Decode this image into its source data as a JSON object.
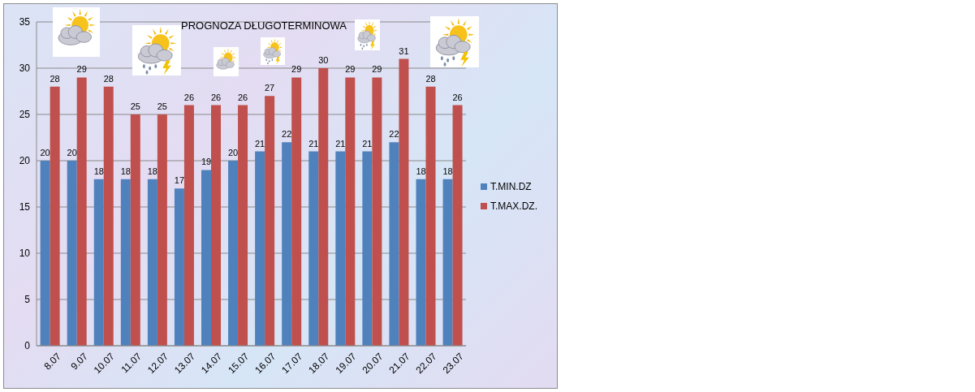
{
  "chart_data": {
    "type": "bar",
    "title": "PROGNOZA DŁUGOTERMINOWA",
    "categories": [
      "8.07",
      "9.07",
      "10.07",
      "11.07",
      "12.07",
      "13.07",
      "14.07",
      "15.07",
      "16.07",
      "17.07",
      "18.07",
      "19.07",
      "20.07",
      "21.07",
      "22.07",
      "23.07"
    ],
    "series": [
      {
        "name": "T.MIN.DZ",
        "color": "#4f81bd",
        "values": [
          20,
          20,
          18,
          18,
          18,
          17,
          19,
          20,
          21,
          22,
          21,
          21,
          21,
          22,
          18,
          18
        ]
      },
      {
        "name": "T.MAX.DZ.",
        "color": "#c0504d",
        "values": [
          28,
          29,
          28,
          25,
          25,
          26,
          26,
          26,
          27,
          29,
          30,
          29,
          29,
          31,
          28,
          26
        ]
      }
    ],
    "ylim": [
      0,
      35
    ],
    "yticks": [
      0,
      5,
      10,
      15,
      20,
      25,
      30,
      35
    ],
    "grid": "y",
    "legend": "right",
    "data_labels": true
  }
}
